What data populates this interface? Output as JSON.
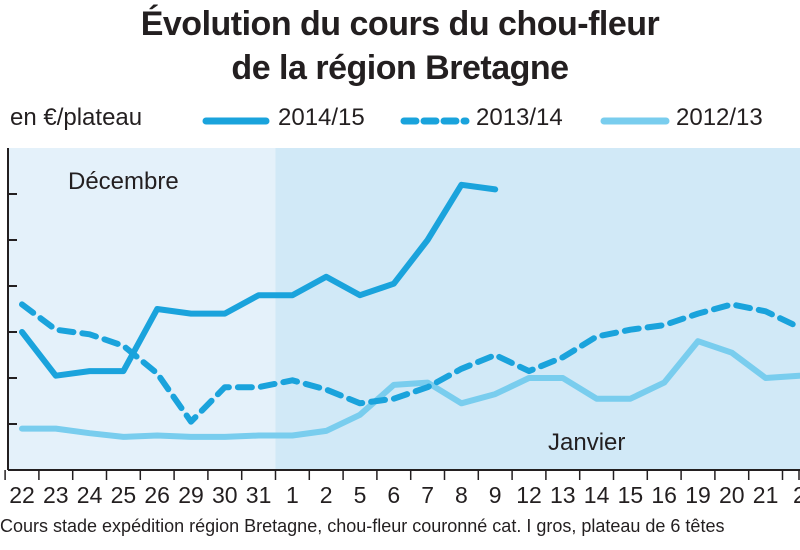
{
  "chart_data": {
    "type": "line",
    "title_line1": "Évolution du cours du chou-fleur",
    "title_line2": "de la région Bretagne",
    "ylabel": "en €/plateau",
    "xlabel": "",
    "x": [
      "22",
      "23",
      "24",
      "25",
      "26",
      "29",
      "30",
      "31",
      "1",
      "2",
      "5",
      "6",
      "7",
      "8",
      "9",
      "12",
      "13",
      "14",
      "15",
      "16",
      "19",
      "20",
      "21",
      "2"
    ],
    "month_labels": [
      "Décembre",
      "Janvier"
    ],
    "ylim": [
      0,
      7
    ],
    "y_ticks": [
      1,
      2,
      3,
      4,
      5,
      6
    ],
    "grid": false,
    "legend_position": "top",
    "series": [
      {
        "name": "2014/15",
        "style": "solid-thick",
        "color": "#1aa3dc",
        "values": [
          3.0,
          2.05,
          2.15,
          2.15,
          3.5,
          3.4,
          3.4,
          3.8,
          3.8,
          4.2,
          3.8,
          4.05,
          5.0,
          6.2,
          6.1,
          null,
          null,
          null,
          null,
          null,
          null,
          null,
          null,
          null
        ]
      },
      {
        "name": "2013/14",
        "style": "dashed",
        "color": "#1aa3dc",
        "values": [
          3.6,
          3.05,
          2.95,
          2.7,
          2.1,
          1.05,
          1.8,
          1.8,
          1.95,
          1.75,
          1.45,
          1.55,
          1.8,
          2.2,
          2.5,
          2.15,
          2.45,
          2.9,
          3.05,
          3.15,
          3.4,
          3.6,
          3.45,
          3.1
        ]
      },
      {
        "name": "2012/13",
        "style": "solid-light",
        "color": "#79cdee",
        "values": [
          0.9,
          0.9,
          0.8,
          0.72,
          0.75,
          0.72,
          0.72,
          0.75,
          0.75,
          0.85,
          1.2,
          1.85,
          1.9,
          1.45,
          1.65,
          2.0,
          2.0,
          1.55,
          1.55,
          1.9,
          2.8,
          2.55,
          2.0,
          2.05
        ]
      }
    ],
    "footnote": "Cours stade expédition région Bretagne, chou-fleur couronné cat. I gros, plateau de 6 têtes"
  },
  "colors": {
    "dark_series": "#1aa3dc",
    "light_series": "#79cdee",
    "plot_bg_december": "#e4f1fa",
    "plot_bg_january": "#d1e9f7"
  }
}
